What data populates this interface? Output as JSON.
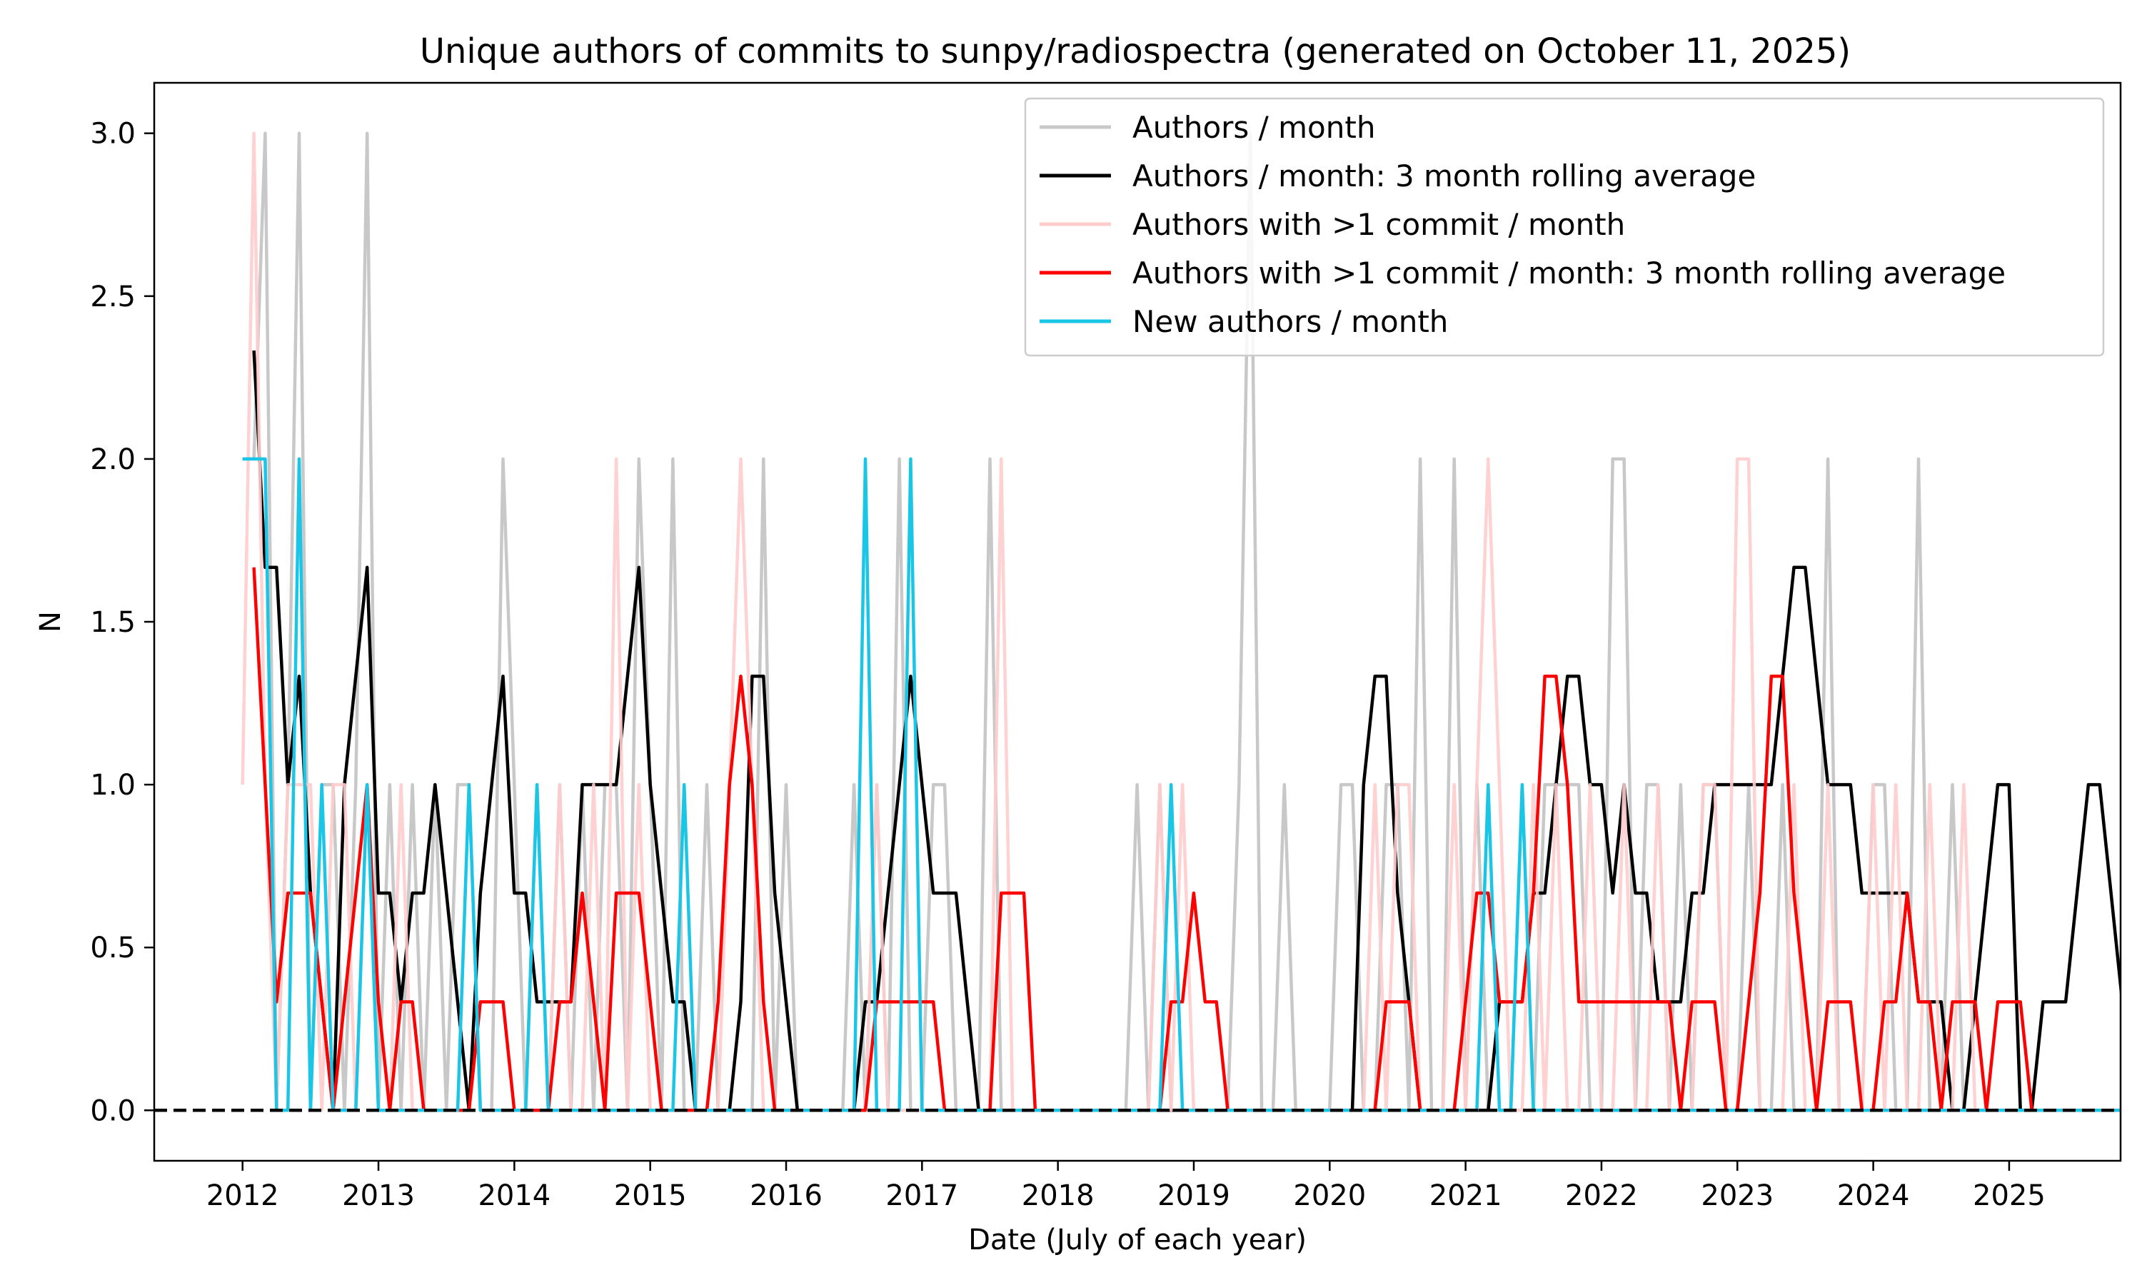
{
  "chart_data": {
    "type": "line",
    "title": "Unique authors of commits to sunpy/radiospectra (generated on October 11, 2025)",
    "xlabel": "Date (July of each year)",
    "ylabel": "N",
    "xlim": [
      2011.35,
      2025.82
    ],
    "ylim": [
      -0.155,
      3.155
    ],
    "x_ticks": [
      2012,
      2013,
      2014,
      2015,
      2016,
      2017,
      2018,
      2019,
      2020,
      2021,
      2022,
      2023,
      2024,
      2025
    ],
    "y_ticks": [
      0.0,
      0.5,
      1.0,
      1.5,
      2.0,
      2.5,
      3.0
    ],
    "y_tick_labels": [
      "0.0",
      "0.5",
      "1.0",
      "1.5",
      "2.0",
      "2.5",
      "3.0"
    ],
    "baseline": {
      "y": 0,
      "style": "dashed",
      "color": "#000000"
    },
    "grid": false,
    "legend_position": "top-right",
    "x_start": 2012.0,
    "x_step": 0.08333,
    "series": [
      {
        "name": "Authors / month",
        "color": "#c8c8c8",
        "values": [
          2,
          2,
          3,
          0,
          1,
          3,
          0,
          1,
          1,
          0,
          1,
          3,
          0,
          1,
          0,
          1,
          0,
          1,
          0,
          1,
          1,
          0,
          0,
          2,
          1,
          0,
          1,
          0,
          1,
          0,
          1,
          0,
          1,
          1,
          0,
          2,
          1,
          0,
          2,
          0,
          0,
          1,
          0,
          0,
          0,
          0,
          2,
          0,
          1,
          0,
          0,
          0,
          0,
          0,
          1,
          0,
          1,
          0,
          2,
          0,
          0,
          1,
          1,
          0,
          0,
          0,
          2,
          0,
          0,
          0,
          0,
          0,
          0,
          0,
          0,
          0,
          0,
          0,
          0,
          1,
          0,
          1,
          0,
          0,
          0,
          0,
          0,
          0,
          1,
          3,
          0,
          0,
          1,
          0,
          0,
          0,
          0,
          1,
          1,
          0,
          0,
          1,
          1,
          0,
          2,
          0,
          0,
          2,
          0,
          1,
          0,
          0,
          0,
          1,
          0,
          1,
          1,
          1,
          1,
          0,
          0,
          2,
          2,
          0,
          1,
          1,
          0,
          1,
          0,
          1,
          1,
          0,
          0,
          1,
          0,
          0,
          1,
          0,
          0,
          0,
          2,
          0,
          0,
          0,
          1,
          1,
          0,
          0,
          2,
          0,
          0,
          1,
          0,
          0,
          0,
          0,
          0,
          0
        ],
        "offset": 0
      },
      {
        "name": "Authors / month: 3 month rolling average",
        "color": "#000000",
        "values": [
          2.333,
          1.667,
          1.667,
          1,
          1.333,
          0.667,
          0.333,
          0,
          1,
          1.333,
          1.667,
          0.667,
          0.667,
          0.333,
          0.667,
          0.667,
          1,
          0.667,
          0.333,
          0,
          0.667,
          1,
          1.333,
          0.667,
          0.667,
          0.333,
          0.333,
          0.333,
          0.333,
          1,
          1,
          1,
          1,
          1.333,
          1.667,
          1,
          0.667,
          0.333,
          0.333,
          0,
          0,
          0,
          0,
          0.333,
          1.333,
          1.333,
          0.667,
          0.333,
          0,
          0,
          0,
          0,
          0,
          0,
          0.333,
          0.333,
          0.667,
          1,
          1.333,
          1,
          0.667,
          0.667,
          0.667,
          0.333,
          0,
          0,
          0,
          0,
          0,
          0,
          0,
          0,
          0,
          0,
          0,
          0,
          0,
          0,
          0,
          0,
          0,
          0,
          0,
          0,
          0,
          0,
          0,
          0,
          0,
          0,
          0,
          0,
          0,
          0,
          0,
          0,
          0,
          0,
          1,
          1.333,
          1.333,
          0.667,
          0.333,
          0,
          0,
          0,
          0,
          0,
          0,
          0,
          0.333,
          0.333,
          0.333,
          0.667,
          0.667,
          1,
          1.333,
          1.333,
          1,
          1,
          0.667,
          1,
          0.667,
          0.667,
          0.333,
          0.333,
          0.333,
          0.667,
          0.667,
          1,
          1,
          1,
          1,
          1,
          1,
          1.333,
          1.667,
          1.667,
          1.333,
          1,
          1,
          1,
          0.667,
          0.667,
          0.667,
          0.667,
          0.667,
          0.333,
          0.333,
          0.333,
          0,
          0,
          0.333,
          0.667,
          1,
          1,
          0,
          0,
          0.333,
          0.333,
          0.333,
          0.667,
          1,
          1,
          0.667,
          0.333,
          0.333,
          0.333,
          0
        ],
        "offset": 1
      },
      {
        "name": "Authors with >1 commit / month",
        "color": "#ffcccc",
        "values": [
          1,
          3,
          1,
          0,
          1,
          1,
          1,
          0,
          1,
          1,
          0,
          1,
          0,
          0,
          1,
          0,
          0,
          0,
          0,
          0,
          1,
          0,
          0,
          0,
          0,
          0,
          1,
          0,
          1,
          0,
          0,
          1,
          0,
          2,
          0,
          1,
          0,
          0,
          0,
          0,
          0,
          0,
          0,
          1,
          2,
          1,
          0,
          0,
          0,
          0,
          0,
          0,
          0,
          0,
          0,
          0,
          1,
          0,
          0,
          0,
          0,
          0,
          0,
          0,
          0,
          0,
          0,
          2,
          0,
          0,
          0,
          0,
          0,
          0,
          0,
          0,
          0,
          0,
          0,
          0,
          0,
          1,
          0,
          1,
          0,
          0,
          0,
          0,
          0,
          0,
          0,
          0,
          0,
          0,
          0,
          0,
          0,
          0,
          0,
          0,
          1,
          0,
          1,
          1,
          0,
          0,
          0,
          1,
          0,
          1,
          2,
          1,
          0,
          0,
          1,
          0,
          1,
          0,
          0,
          1,
          0,
          0,
          1,
          0,
          0,
          1,
          0,
          0,
          0,
          1,
          1,
          0,
          2,
          2,
          0,
          0,
          0,
          1,
          0,
          0,
          1,
          0,
          0,
          0,
          1,
          0,
          1,
          0,
          0,
          1,
          0,
          0,
          1,
          0,
          0,
          0,
          0,
          0,
          0,
          0,
          0,
          0,
          0,
          0,
          0,
          0,
          0,
          0
        ],
        "offset": 0
      },
      {
        "name": "Authors with >1 commit / month: 3 month rolling average",
        "color": "#ff0000",
        "values": [
          1.667,
          1,
          0.333,
          0.667,
          0.667,
          0.667,
          0.333,
          0,
          0.333,
          0.667,
          1,
          0.333,
          0,
          0.333,
          0.333,
          0,
          0,
          0,
          0,
          0,
          0.333,
          0.333,
          0.333,
          0,
          0,
          0,
          0,
          0.333,
          0.333,
          0.667,
          0.333,
          0,
          0.667,
          0.667,
          0.667,
          0.333,
          0,
          0,
          0,
          0,
          0,
          0.333,
          1,
          1.333,
          1,
          0.333,
          0,
          0,
          0,
          0,
          0,
          0,
          0,
          0,
          0,
          0.333,
          0.333,
          0.333,
          0.333,
          0.333,
          0.333,
          0,
          0,
          0,
          0,
          0,
          0.667,
          0.667,
          0.667,
          0,
          0,
          0,
          0,
          0,
          0,
          0,
          0,
          0,
          0,
          0,
          0,
          0.333,
          0.333,
          0.667,
          0.333,
          0.333,
          0,
          0,
          0,
          0,
          0,
          0,
          0,
          0,
          0,
          0,
          0,
          0,
          0,
          0,
          0.333,
          0.333,
          0.333,
          0,
          0,
          0,
          0,
          0.333,
          0.667,
          0.667,
          0.333,
          0.333,
          0.333,
          0.667,
          1.333,
          1.333,
          1,
          0.333,
          0.333,
          0.333,
          0.333,
          0.333,
          0.333,
          0.333,
          0.333,
          0.333,
          0,
          0.333,
          0.333,
          0.333,
          0,
          0,
          0.333,
          0.667,
          1.333,
          1.333,
          0.667,
          0.333,
          0,
          0.333,
          0.333,
          0.333,
          0,
          0,
          0.333,
          0.333,
          0.667,
          0.333,
          0.333,
          0,
          0.333,
          0.333,
          0.333,
          0,
          0.333,
          0.333,
          0.333,
          0,
          0,
          0,
          0,
          0,
          0,
          0,
          0,
          0,
          0,
          0,
          0,
          0
        ],
        "offset": 1
      },
      {
        "name": "New authors / month",
        "color": "#1ac6e6",
        "values": [
          2,
          2,
          2,
          0,
          0,
          2,
          0,
          1,
          0,
          0,
          0,
          1,
          0,
          0,
          0,
          0,
          0,
          0,
          0,
          0,
          1,
          0,
          0,
          0,
          0,
          0,
          1,
          0,
          0,
          0,
          0,
          0,
          0,
          0,
          0,
          0,
          0,
          0,
          0,
          1,
          0,
          0,
          0,
          0,
          0,
          0,
          0,
          0,
          0,
          0,
          0,
          0,
          0,
          0,
          0,
          2,
          0,
          0,
          0,
          2,
          0,
          0,
          0,
          0,
          0,
          0,
          0,
          0,
          0,
          0,
          0,
          0,
          0,
          0,
          0,
          0,
          0,
          0,
          0,
          0,
          0,
          0,
          1,
          0,
          0,
          0,
          0,
          0,
          0,
          0,
          0,
          0,
          0,
          0,
          0,
          0,
          0,
          0,
          0,
          0,
          0,
          0,
          0,
          0,
          0,
          0,
          0,
          0,
          0,
          0,
          1,
          0,
          0,
          1,
          0,
          0,
          0,
          0,
          0,
          0,
          0,
          0,
          0,
          0,
          0,
          0,
          0,
          0,
          0,
          0,
          0,
          0,
          0,
          0,
          0,
          0,
          0,
          0,
          0,
          0,
          0,
          0,
          0,
          0,
          0,
          0,
          0,
          0,
          0,
          0,
          0,
          0,
          0,
          0,
          0,
          0,
          0,
          0,
          0,
          0,
          0,
          0,
          0,
          0,
          0,
          0,
          0,
          0
        ],
        "offset": 0
      }
    ]
  }
}
